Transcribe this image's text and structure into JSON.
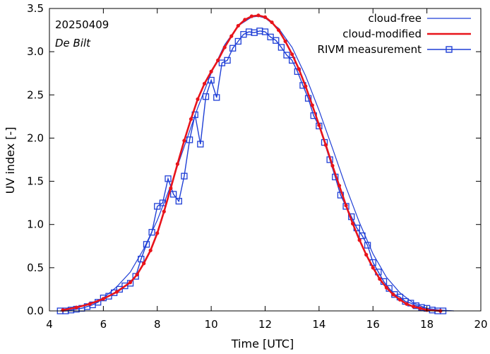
{
  "chart_data": {
    "type": "line",
    "title": "",
    "annotations": {
      "date": "20250409",
      "station": "De Bilt"
    },
    "xlabel": "Time  [UTC]",
    "ylabel": "UV index  [-]",
    "xlim": [
      4,
      20
    ],
    "ylim": [
      0,
      3.5
    ],
    "xticks": [
      4,
      6,
      8,
      10,
      12,
      14,
      16,
      18,
      20
    ],
    "yticks": [
      0.0,
      0.5,
      1.0,
      1.5,
      2.0,
      2.5,
      3.0,
      3.5
    ],
    "ytick_labels": [
      "0.0",
      "0.5",
      "1.0",
      "1.5",
      "2.0",
      "2.5",
      "3.0",
      "3.5"
    ],
    "legend_position": "top-right",
    "colors": {
      "cloud_free": "#1f3fd6",
      "cloud_modified": "#e8141b",
      "measurement": "#1f3fd6"
    },
    "series": [
      {
        "name": "cloud-free",
        "style": "thin-line",
        "x": [
          4.5,
          5.0,
          5.5,
          6.0,
          6.5,
          7.0,
          7.5,
          8.0,
          8.5,
          9.0,
          9.5,
          10.0,
          10.5,
          11.0,
          11.5,
          11.75,
          12.0,
          12.5,
          13.0,
          13.5,
          14.0,
          14.5,
          15.0,
          15.5,
          16.0,
          16.5,
          17.0,
          17.5,
          18.0,
          18.5,
          19.0
        ],
        "y": [
          0.01,
          0.04,
          0.08,
          0.15,
          0.28,
          0.45,
          0.72,
          1.05,
          1.45,
          1.9,
          2.35,
          2.75,
          3.08,
          3.3,
          3.4,
          3.41,
          3.39,
          3.27,
          3.05,
          2.72,
          2.32,
          1.88,
          1.43,
          1.02,
          0.66,
          0.39,
          0.21,
          0.09,
          0.03,
          0.01,
          0.0
        ]
      },
      {
        "name": "cloud-modified",
        "style": "thick-line-dots",
        "x": [
          4.5,
          5.0,
          5.5,
          6.0,
          6.5,
          7.0,
          7.25,
          7.5,
          7.75,
          8.0,
          8.25,
          8.5,
          8.75,
          9.0,
          9.25,
          9.5,
          9.75,
          10.0,
          10.25,
          10.5,
          10.75,
          11.0,
          11.25,
          11.5,
          11.75,
          12.0,
          12.25,
          12.5,
          12.75,
          13.0,
          13.25,
          13.5,
          13.75,
          14.0,
          14.25,
          14.5,
          14.75,
          15.0,
          15.25,
          15.5,
          15.75,
          16.0,
          16.25,
          16.5,
          16.75,
          17.0,
          17.25,
          17.5,
          17.75,
          18.0,
          18.5
        ],
        "y": [
          0.01,
          0.04,
          0.08,
          0.14,
          0.22,
          0.33,
          0.42,
          0.55,
          0.7,
          0.9,
          1.15,
          1.42,
          1.7,
          1.97,
          2.22,
          2.45,
          2.63,
          2.77,
          2.9,
          3.05,
          3.18,
          3.3,
          3.37,
          3.41,
          3.42,
          3.4,
          3.34,
          3.25,
          3.12,
          2.97,
          2.8,
          2.6,
          2.38,
          2.15,
          1.92,
          1.68,
          1.45,
          1.22,
          1.01,
          0.82,
          0.65,
          0.5,
          0.37,
          0.27,
          0.19,
          0.13,
          0.08,
          0.05,
          0.03,
          0.01,
          0.0
        ]
      },
      {
        "name": "RIVM measurement",
        "style": "line-squares",
        "x": [
          4.4,
          4.6,
          4.8,
          5.0,
          5.2,
          5.4,
          5.6,
          5.8,
          6.0,
          6.2,
          6.4,
          6.6,
          6.8,
          7.0,
          7.2,
          7.4,
          7.6,
          7.8,
          8.0,
          8.2,
          8.4,
          8.6,
          8.8,
          9.0,
          9.2,
          9.4,
          9.6,
          9.8,
          10.0,
          10.2,
          10.4,
          10.6,
          10.8,
          11.0,
          11.2,
          11.4,
          11.6,
          11.8,
          12.0,
          12.2,
          12.4,
          12.6,
          12.8,
          13.0,
          13.2,
          13.4,
          13.6,
          13.8,
          14.0,
          14.2,
          14.4,
          14.6,
          14.8,
          15.0,
          15.2,
          15.4,
          15.6,
          15.8,
          16.0,
          16.2,
          16.4,
          16.6,
          16.8,
          17.0,
          17.2,
          17.4,
          17.6,
          17.8,
          18.0,
          18.2,
          18.4,
          18.6
        ],
        "y": [
          0.0,
          0.0,
          0.01,
          0.02,
          0.03,
          0.05,
          0.07,
          0.1,
          0.15,
          0.17,
          0.21,
          0.25,
          0.29,
          0.32,
          0.4,
          0.6,
          0.77,
          0.91,
          1.21,
          1.25,
          1.53,
          1.35,
          1.27,
          1.56,
          1.98,
          2.27,
          1.93,
          2.48,
          2.67,
          2.47,
          2.87,
          2.9,
          3.04,
          3.12,
          3.2,
          3.23,
          3.22,
          3.24,
          3.23,
          3.17,
          3.13,
          3.05,
          2.96,
          2.9,
          2.77,
          2.61,
          2.46,
          2.26,
          2.14,
          1.95,
          1.75,
          1.55,
          1.34,
          1.21,
          1.09,
          0.96,
          0.87,
          0.76,
          0.56,
          0.45,
          0.34,
          0.26,
          0.19,
          0.16,
          0.11,
          0.09,
          0.06,
          0.04,
          0.03,
          0.01,
          0.0,
          0.0
        ]
      }
    ]
  }
}
